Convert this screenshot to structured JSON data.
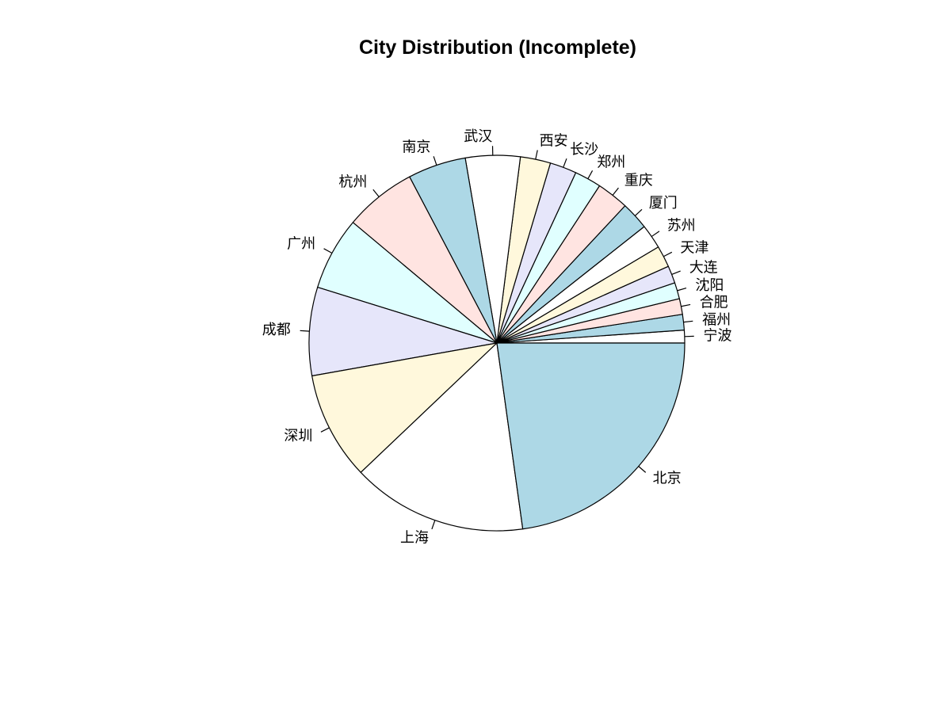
{
  "chart_data": {
    "type": "pie",
    "title": "City Distribution (Incomplete)",
    "legend": "none",
    "background": "#FFFFFF",
    "stroke_color": "#000000",
    "start_angle_deg": 0,
    "direction": "counterclockwise",
    "labels_shown": true,
    "palette": [
      "#FFFFFF",
      "#ADD8E6",
      "#FFE4E1",
      "#E0FFFF",
      "#E6E6FA",
      "#FFF8DC"
    ],
    "slices": [
      {
        "label": "宁波",
        "percent": 1.1,
        "color": "#FFFFFF"
      },
      {
        "label": "福州",
        "percent": 1.35,
        "color": "#ADD8E6"
      },
      {
        "label": "合肥",
        "percent": 1.35,
        "color": "#FFE4E1"
      },
      {
        "label": "沈阳",
        "percent": 1.4,
        "color": "#E0FFFF"
      },
      {
        "label": "大连",
        "percent": 1.5,
        "color": "#E6E6FA"
      },
      {
        "label": "天津",
        "percent": 1.85,
        "color": "#FFF8DC"
      },
      {
        "label": "苏州",
        "percent": 2.1,
        "color": "#FFFFFF"
      },
      {
        "label": "厦门",
        "percent": 2.4,
        "color": "#ADD8E6"
      },
      {
        "label": "重庆",
        "percent": 2.75,
        "color": "#FFE4E1"
      },
      {
        "label": "郑州",
        "percent": 2.3,
        "color": "#E0FFFF"
      },
      {
        "label": "长沙",
        "percent": 2.3,
        "color": "#E6E6FA"
      },
      {
        "label": "西安",
        "percent": 2.6,
        "color": "#FFF8DC"
      },
      {
        "label": "武汉",
        "percent": 4.7,
        "color": "#FFFFFF"
      },
      {
        "label": "南京",
        "percent": 5.0,
        "color": "#ADD8E6"
      },
      {
        "label": "杭州",
        "percent": 6.2,
        "color": "#FFE4E1"
      },
      {
        "label": "广州",
        "percent": 6.3,
        "color": "#E0FFFF"
      },
      {
        "label": "成都",
        "percent": 7.6,
        "color": "#E6E6FA"
      },
      {
        "label": "深圳",
        "percent": 9.3,
        "color": "#FFF8DC"
      },
      {
        "label": "上海",
        "percent": 15.1,
        "color": "#FFFFFF"
      },
      {
        "label": "北京",
        "percent": 22.8,
        "color": "#ADD8E6"
      }
    ]
  }
}
